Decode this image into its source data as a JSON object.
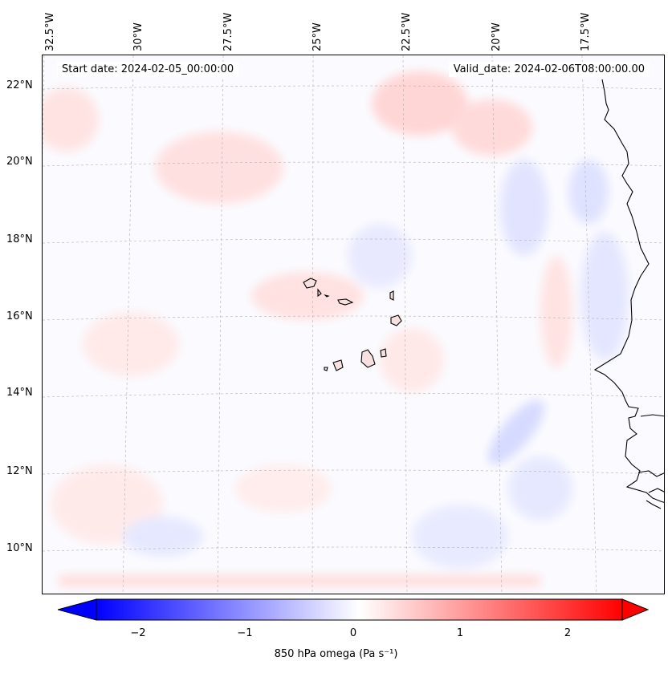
{
  "map": {
    "start_date": "Start date: 2024-02-05_00:00:00",
    "valid_date": "Valid_date: 2024-02-06T08:00:00.00",
    "lon_labels": [
      "32.5°W",
      "30°W",
      "27.5°W",
      "25°W",
      "22.5°W",
      "20°W",
      "17.5°W"
    ],
    "lat_labels": [
      "22°N",
      "20°N",
      "18°N",
      "16°N",
      "14°N",
      "12°N",
      "10°N"
    ],
    "colors": {
      "negative": "#0000ff",
      "positive": "#ff0000",
      "neutral": "#ffffff",
      "coastline": "#000000",
      "gridline": "#b0b0b0"
    }
  },
  "colorbar": {
    "ticks": [
      "−2",
      "−1",
      "0",
      "1",
      "2"
    ],
    "label": "850 hPa omega (Pa s⁻¹)",
    "range": [
      -2.6,
      2.6
    ]
  }
}
